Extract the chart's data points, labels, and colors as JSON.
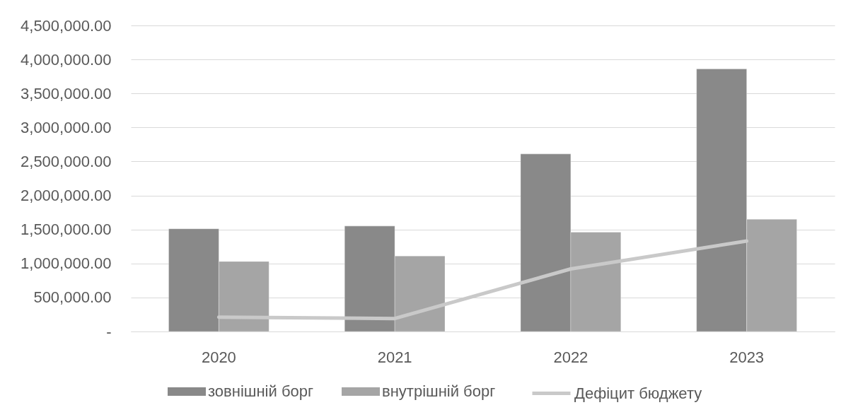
{
  "chart_data": {
    "type": "bar",
    "categories": [
      "2020",
      "2021",
      "2022",
      "2023"
    ],
    "series": [
      {
        "name": "зовнішній борг",
        "color": "#898989",
        "values": [
          1510000,
          1550000,
          2610000,
          3860000
        ]
      },
      {
        "name": "внутрішній борг",
        "color": "#a5a5a5",
        "values": [
          1030000,
          1110000,
          1460000,
          1650000
        ]
      },
      {
        "name": "Дефіцит бюджету",
        "type": "line",
        "color": "#c9c9c9",
        "line_style": "solid",
        "values": [
          210000,
          190000,
          920000,
          1330000
        ]
      }
    ],
    "ylim": [
      0,
      4500000
    ],
    "yticks": [
      {
        "value": 0,
        "label": "-"
      },
      {
        "value": 500000,
        "label": "500,000.00"
      },
      {
        "value": 1000000,
        "label": "1,000,000.00"
      },
      {
        "value": 1500000,
        "label": "1,500,000.00"
      },
      {
        "value": 2000000,
        "label": "2,000,000.00"
      },
      {
        "value": 2500000,
        "label": "2,500,000.00"
      },
      {
        "value": 3000000,
        "label": "3,000,000.00"
      },
      {
        "value": 3500000,
        "label": "3,500,000.00"
      },
      {
        "value": 4000000,
        "label": "4,000,000.00"
      },
      {
        "value": 4500000,
        "label": "4,500,000.00"
      }
    ],
    "grid": "y",
    "legend": "bottom"
  }
}
